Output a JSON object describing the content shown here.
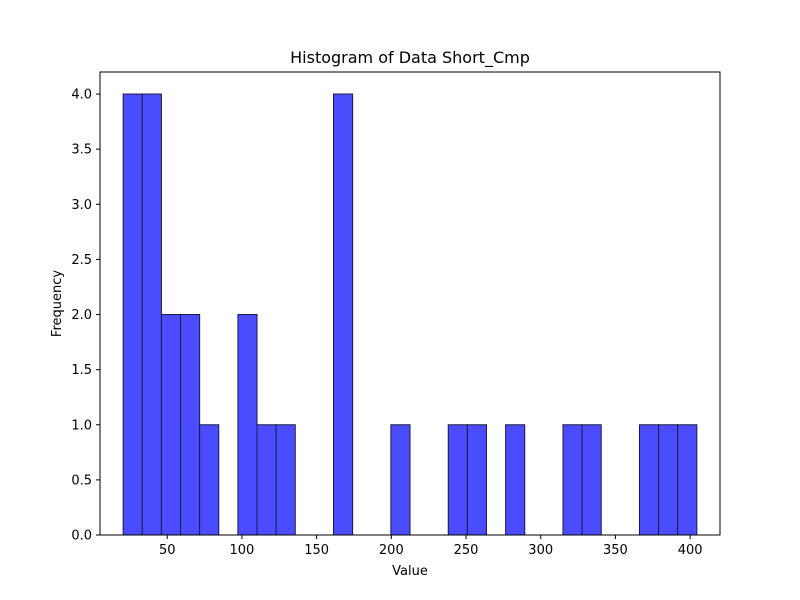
{
  "chart_data": {
    "type": "bar",
    "title": "Histogram of Data Short_Cmp",
    "xlabel": "Value",
    "ylabel": "Frequency",
    "xlim": [
      5,
      420
    ],
    "ylim": [
      0,
      4.2
    ],
    "xticks": [
      50,
      100,
      150,
      200,
      250,
      300,
      350,
      400
    ],
    "yticks": [
      0,
      0.5,
      1.0,
      1.5,
      2.0,
      2.5,
      3.0,
      3.5,
      4.0
    ],
    "ytick_labels": [
      "0.0",
      "0.5",
      "1.0",
      "1.5",
      "2.0",
      "2.5",
      "3.0",
      "3.5",
      "4.0"
    ],
    "xtick_labels": [
      "50",
      "100",
      "150",
      "200",
      "250",
      "300",
      "350",
      "400"
    ],
    "bin_start": 20.5,
    "bin_width": 12.8,
    "counts": [
      4,
      4,
      2,
      2,
      1,
      0,
      2,
      1,
      1,
      0,
      0,
      4,
      0,
      0,
      1,
      0,
      0,
      1,
      1,
      0,
      1,
      0,
      0,
      1,
      1,
      0,
      0,
      1,
      1,
      1
    ],
    "bar_color": "#4b4bff",
    "edge_color": "#1a1a40",
    "grid": false
  }
}
